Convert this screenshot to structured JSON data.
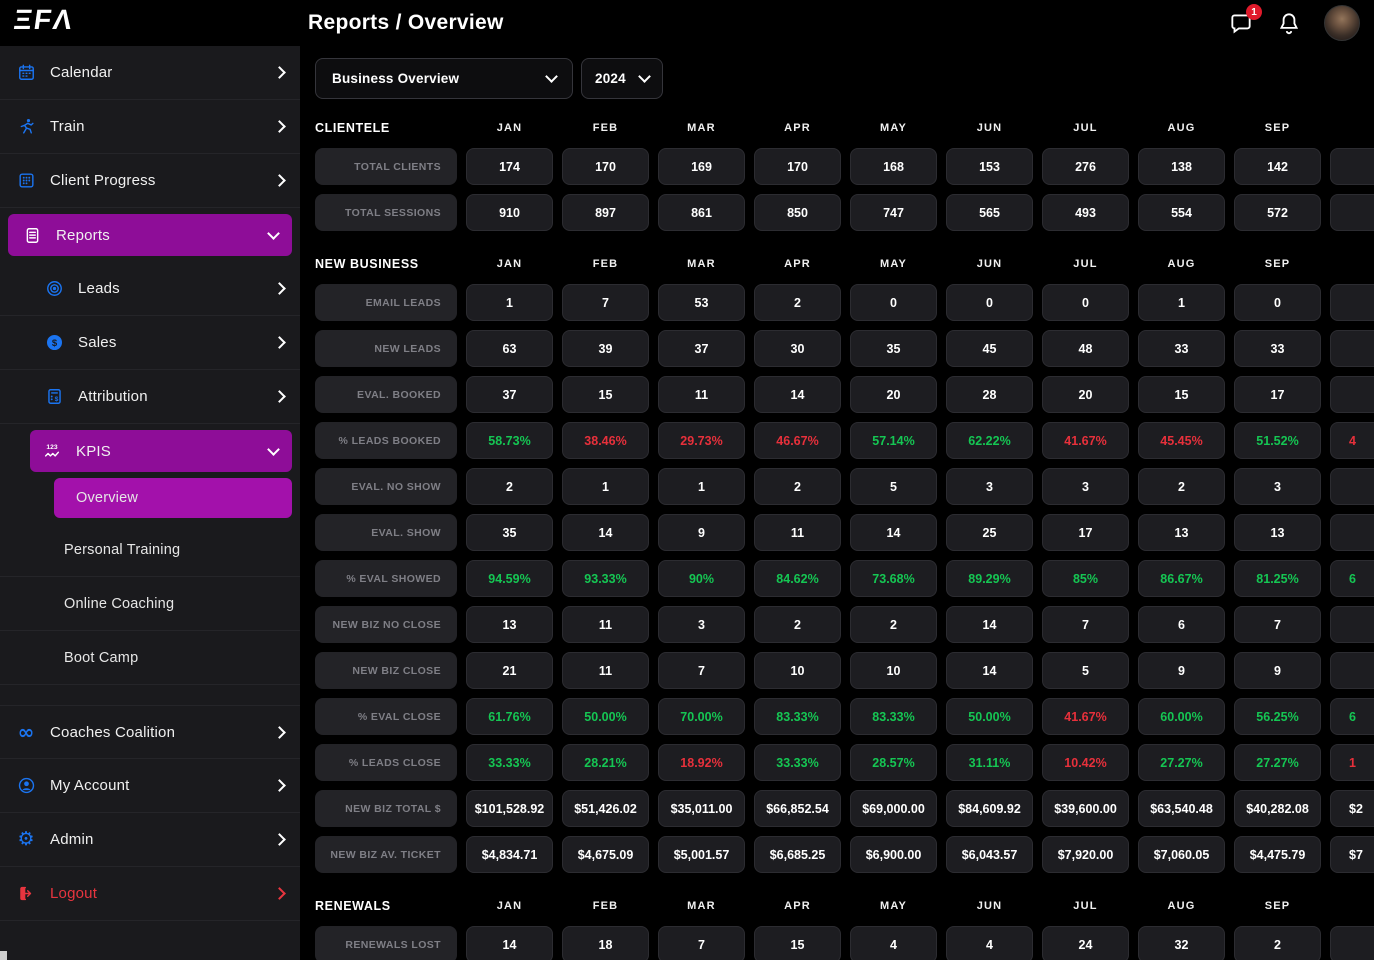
{
  "header": {
    "brand_glyphs": "ΞFΛ",
    "title": "Reports / Overview",
    "messages_badge": "1"
  },
  "filters": {
    "report_type": "Business Overview",
    "year": "2024"
  },
  "colors": {
    "green": "#15c653",
    "red": "#e7303b",
    "accent": "#8e0d98",
    "accent_bright": "#a311ab",
    "blue": "#1b74f0",
    "danger": "#e8353f"
  },
  "sidebar": {
    "items": [
      {
        "name": "calendar",
        "label": "Calendar",
        "icon": "calendar-icon",
        "chevron": "right",
        "level": 1,
        "variant": "default"
      },
      {
        "name": "train",
        "label": "Train",
        "icon": "train-icon",
        "chevron": "right",
        "level": 1,
        "variant": "default"
      },
      {
        "name": "client-progress",
        "label": "Client Progress",
        "icon": "client-progress-icon",
        "chevron": "right",
        "level": 1,
        "variant": "default"
      },
      {
        "name": "reports",
        "label": "Reports",
        "icon": "reports-icon",
        "chevron": "down",
        "level": 1,
        "variant": "purple"
      },
      {
        "name": "leads",
        "label": "Leads",
        "icon": "leads-icon",
        "chevron": "right",
        "level": 2,
        "variant": "default"
      },
      {
        "name": "sales",
        "label": "Sales",
        "icon": "sales-icon",
        "chevron": "right",
        "level": 2,
        "variant": "default"
      },
      {
        "name": "attribution",
        "label": "Attribution",
        "icon": "attribution-icon",
        "chevron": "right",
        "level": 2,
        "variant": "default"
      },
      {
        "name": "kpis",
        "label": "KPIS",
        "icon": "kpis-icon",
        "chevron": "down",
        "level": 2,
        "variant": "purple"
      },
      {
        "name": "overview",
        "label": "Overview",
        "icon": null,
        "chevron": null,
        "level": 3,
        "variant": "purple-bright"
      },
      {
        "name": "personal-training",
        "label": "Personal Training",
        "icon": null,
        "chevron": null,
        "level": 3,
        "variant": "default"
      },
      {
        "name": "online-coaching",
        "label": "Online Coaching",
        "icon": null,
        "chevron": null,
        "level": 3,
        "variant": "default"
      },
      {
        "name": "boot-camp",
        "label": "Boot Camp",
        "icon": null,
        "chevron": null,
        "level": 3,
        "variant": "default"
      },
      {
        "name": "coaches-coalition",
        "label": "Coaches Coalition",
        "icon": "coaches-coalition-icon",
        "chevron": "right",
        "level": 1,
        "variant": "default"
      },
      {
        "name": "my-account",
        "label": "My Account",
        "icon": "my-account-icon",
        "chevron": "right",
        "level": 1,
        "variant": "default"
      },
      {
        "name": "admin",
        "label": "Admin",
        "icon": "admin-icon",
        "chevron": "right",
        "level": 1,
        "variant": "default"
      },
      {
        "name": "logout",
        "label": "Logout",
        "icon": "logout-icon",
        "chevron": "right",
        "level": 1,
        "variant": "danger"
      }
    ]
  },
  "table": {
    "months": [
      "JAN",
      "FEB",
      "MAR",
      "APR",
      "MAY",
      "JUN",
      "JUL",
      "AUG",
      "SEP"
    ],
    "sections": [
      {
        "title": "CLIENTELE",
        "rows": [
          {
            "label": "TOTAL CLIENTS",
            "values": [
              "174",
              "170",
              "169",
              "170",
              "168",
              "153",
              "276",
              "138",
              "142"
            ]
          },
          {
            "label": "TOTAL SESSIONS",
            "values": [
              "910",
              "897",
              "861",
              "850",
              "747",
              "565",
              "493",
              "554",
              "572"
            ]
          }
        ]
      },
      {
        "title": "NEW BUSINESS",
        "rows": [
          {
            "label": "EMAIL LEADS",
            "values": [
              "1",
              "7",
              "53",
              "2",
              "0",
              "0",
              "0",
              "1",
              "0"
            ]
          },
          {
            "label": "NEW LEADS",
            "values": [
              "63",
              "39",
              "37",
              "30",
              "35",
              "45",
              "48",
              "33",
              "33"
            ]
          },
          {
            "label": "EVAL. BOOKED",
            "values": [
              "37",
              "15",
              "11",
              "14",
              "20",
              "28",
              "20",
              "15",
              "17"
            ]
          },
          {
            "label": "% LEADS BOOKED",
            "values": [
              "58.73%",
              "38.46%",
              "29.73%",
              "46.67%",
              "57.14%",
              "62.22%",
              "41.67%",
              "45.45%",
              "51.52%"
            ],
            "colors": [
              "g",
              "r",
              "r",
              "r",
              "g",
              "g",
              "r",
              "r",
              "g"
            ],
            "partial": {
              "t": "4",
              "c": "r"
            }
          },
          {
            "label": "EVAL. NO SHOW",
            "values": [
              "2",
              "1",
              "1",
              "2",
              "5",
              "3",
              "3",
              "2",
              "3"
            ]
          },
          {
            "label": "EVAL. SHOW",
            "values": [
              "35",
              "14",
              "9",
              "11",
              "14",
              "25",
              "17",
              "13",
              "13"
            ]
          },
          {
            "label": "% EVAL SHOWED",
            "values": [
              "94.59%",
              "93.33%",
              "90%",
              "84.62%",
              "73.68%",
              "89.29%",
              "85%",
              "86.67%",
              "81.25%"
            ],
            "colors": [
              "g",
              "g",
              "g",
              "g",
              "g",
              "g",
              "g",
              "g",
              "g"
            ],
            "partial": {
              "t": "6",
              "c": "g"
            }
          },
          {
            "label": "NEW BIZ NO CLOSE",
            "values": [
              "13",
              "11",
              "3",
              "2",
              "2",
              "14",
              "7",
              "6",
              "7"
            ]
          },
          {
            "label": "NEW BIZ CLOSE",
            "values": [
              "21",
              "11",
              "7",
              "10",
              "10",
              "14",
              "5",
              "9",
              "9"
            ]
          },
          {
            "label": "% EVAL CLOSE",
            "values": [
              "61.76%",
              "50.00%",
              "70.00%",
              "83.33%",
              "83.33%",
              "50.00%",
              "41.67%",
              "60.00%",
              "56.25%"
            ],
            "colors": [
              "g",
              "g",
              "g",
              "g",
              "g",
              "g",
              "r",
              "g",
              "g"
            ],
            "partial": {
              "t": "6",
              "c": "g"
            }
          },
          {
            "label": "% LEADS CLOSE",
            "values": [
              "33.33%",
              "28.21%",
              "18.92%",
              "33.33%",
              "28.57%",
              "31.11%",
              "10.42%",
              "27.27%",
              "27.27%"
            ],
            "colors": [
              "g",
              "g",
              "r",
              "g",
              "g",
              "g",
              "r",
              "g",
              "g"
            ],
            "partial": {
              "t": "1",
              "c": "r"
            }
          },
          {
            "label": "NEW BIZ TOTAL $",
            "values": [
              "$101,528.92",
              "$51,426.02",
              "$35,011.00",
              "$66,852.54",
              "$69,000.00",
              "$84,609.92",
              "$39,600.00",
              "$63,540.48",
              "$40,282.08"
            ],
            "partial": {
              "t": "$2",
              "c": "w"
            }
          },
          {
            "label": "NEW BIZ AV. TICKET",
            "values": [
              "$4,834.71",
              "$4,675.09",
              "$5,001.57",
              "$6,685.25",
              "$6,900.00",
              "$6,043.57",
              "$7,920.00",
              "$7,060.05",
              "$4,475.79"
            ],
            "partial": {
              "t": "$7",
              "c": "w"
            }
          }
        ]
      },
      {
        "title": "RENEWALS",
        "rows": [
          {
            "label": "RENEWALS LOST",
            "values": [
              "14",
              "18",
              "7",
              "15",
              "4",
              "4",
              "24",
              "32",
              "2"
            ]
          }
        ]
      }
    ]
  }
}
